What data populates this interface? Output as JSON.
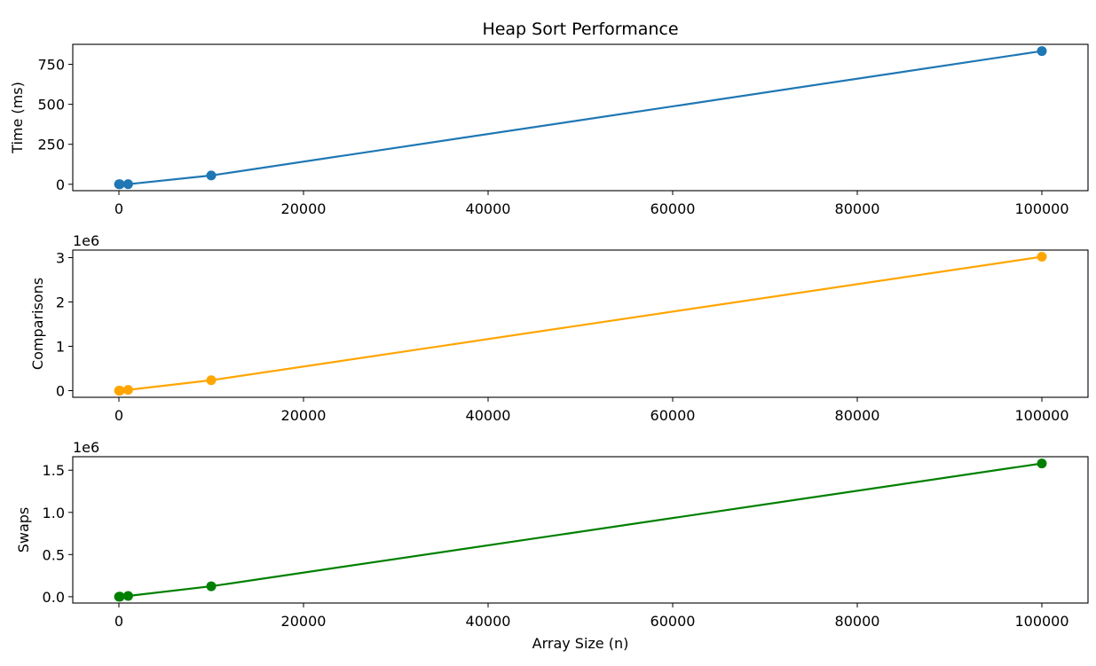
{
  "chart_data": [
    {
      "type": "line",
      "title": "Heap Sort Performance",
      "xlabel": "",
      "ylabel": "Time (ms)",
      "offset_text": "",
      "xlim": [
        -5000,
        105000
      ],
      "ylim": [
        -40,
        875
      ],
      "x_ticks": [
        0,
        20000,
        40000,
        60000,
        80000,
        100000
      ],
      "y_ticks": [
        0,
        250,
        500,
        750
      ],
      "x_tick_labels": [
        "0",
        "20000",
        "40000",
        "60000",
        "80000",
        "100000"
      ],
      "y_tick_labels": [
        "0",
        "250",
        "500",
        "750"
      ],
      "color": "#1f77b4",
      "grid": false,
      "series": [
        {
          "x": [
            10,
            100,
            1000,
            10000,
            100000
          ],
          "y": [
            0.01,
            0.05,
            0.6,
            55,
            833
          ]
        }
      ]
    },
    {
      "type": "line",
      "title": "",
      "xlabel": "",
      "ylabel": "Comparisons",
      "offset_text": "1e6",
      "xlim": [
        -5000,
        105000
      ],
      "ylim": [
        -0.15,
        3.17
      ],
      "x_ticks": [
        0,
        20000,
        40000,
        60000,
        80000,
        100000
      ],
      "y_ticks": [
        0,
        1,
        2,
        3
      ],
      "x_tick_labels": [
        "0",
        "20000",
        "40000",
        "60000",
        "80000",
        "100000"
      ],
      "y_tick_labels": [
        "0",
        "1",
        "2",
        "3"
      ],
      "color": "#ffa500",
      "grid": false,
      "series": [
        {
          "x": [
            10,
            100,
            1000,
            10000,
            100000
          ],
          "y": [
            4e-05,
            0.001,
            0.017,
            0.235,
            3.02
          ]
        }
      ]
    },
    {
      "type": "line",
      "title": "",
      "xlabel": "Array Size (n)",
      "ylabel": "Swaps",
      "offset_text": "1e6",
      "xlim": [
        -5000,
        105000
      ],
      "ylim": [
        -0.075,
        1.66
      ],
      "x_ticks": [
        0,
        20000,
        40000,
        60000,
        80000,
        100000
      ],
      "y_ticks": [
        0,
        0.5,
        1.0,
        1.5
      ],
      "x_tick_labels": [
        "0",
        "20000",
        "40000",
        "60000",
        "80000",
        "100000"
      ],
      "y_tick_labels": [
        "0.0",
        "0.5",
        "1.0",
        "1.5"
      ],
      "color": "#008000",
      "grid": false,
      "series": [
        {
          "x": [
            10,
            100,
            1000,
            10000,
            100000
          ],
          "y": [
            3e-05,
            0.0006,
            0.009,
            0.124,
            1.58
          ]
        }
      ]
    }
  ]
}
